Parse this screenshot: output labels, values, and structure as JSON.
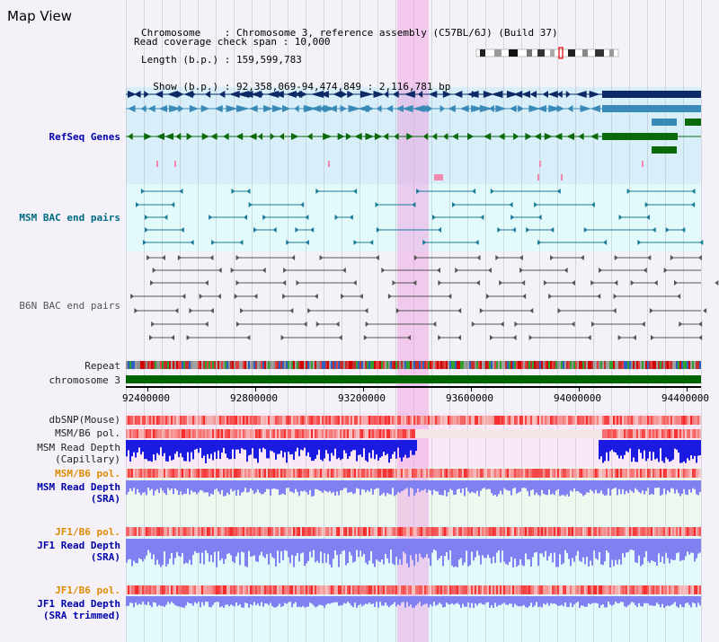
{
  "title": "Map View",
  "info": {
    "chromosome_line": "Chromosome    : Chromosome 3, reference assembly (C57BL/6J) (Build 37)",
    "length_line": "Length (b.p.) : 159,599,783",
    "show_line": "  Show (b.p.) : 92,358,069-94,474,849 : 2,116,781 bp",
    "coverage_line": "Read coverage check span : 10,000"
  },
  "tracks": {
    "refseq": "RefSeq Genes",
    "msm_bac": "MSM BAC end pairs",
    "b6n_bac": "B6N BAC end pairs",
    "repeat": "Repeat",
    "chromosome": "chromosome 3",
    "dbsnp": "dbSNP(Mouse)",
    "msm_b6_pol_1": "MSM/B6 pol.",
    "msm_read_depth_cap_1": "MSM Read Depth",
    "msm_read_depth_cap_2": "(Capillary)",
    "msm_b6_pol_2": "MSM/B6 pol.",
    "msm_read_depth_sra_1": "MSM Read Depth",
    "msm_read_depth_sra_2": "(SRA)",
    "jf1_b6_pol_1": "JF1/B6 pol.",
    "jf1_read_depth_sra_1": "JF1 Read Depth",
    "jf1_read_depth_sra_2": "(SRA)",
    "jf1_b6_pol_2": "JF1/B6 pol.",
    "jf1_read_depth_trim_1": "JF1 Read Depth",
    "jf1_read_depth_trim_2": "(SRA trimmed)"
  },
  "axis": {
    "ticks": [
      "92400000",
      "92800000",
      "93200000",
      "93600000",
      "94000000",
      "94400000"
    ]
  },
  "colors": {
    "highlight": "#f0a0e8",
    "refseq_dark": "#0c2a66",
    "refseq_mid": "#3a8ab8",
    "refseq_green": "#0a6a0a",
    "chromosome_bar": "#006400",
    "depth_blue": "#1a1ae0",
    "depth_light": "#8080f0"
  }
}
